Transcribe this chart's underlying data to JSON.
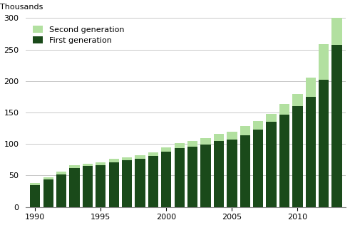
{
  "years": [
    1990,
    1991,
    1992,
    1993,
    1994,
    1995,
    1996,
    1997,
    1998,
    1999,
    2000,
    2001,
    2002,
    2003,
    2004,
    2005,
    2006,
    2007,
    2008,
    2009,
    2010,
    2011,
    2012,
    2013
  ],
  "first_generation": [
    35,
    44,
    52,
    62,
    65,
    66,
    71,
    74,
    76,
    81,
    88,
    93,
    96,
    99,
    105,
    107,
    114,
    123,
    135,
    147,
    160,
    175,
    202,
    257
  ],
  "second_generation": [
    3,
    3,
    4,
    4,
    4,
    5,
    5,
    5,
    6,
    6,
    7,
    8,
    9,
    10,
    11,
    12,
    14,
    13,
    13,
    17,
    19,
    30,
    57,
    43
  ],
  "first_gen_color": "#1a4a1a",
  "second_gen_color": "#b2e0a0",
  "thousands_label": "Thousands",
  "ylim": [
    0,
    300
  ],
  "yticks": [
    0,
    50,
    100,
    150,
    200,
    250,
    300
  ],
  "xticks": [
    1990,
    1995,
    2000,
    2005,
    2010
  ],
  "legend_labels": [
    "Second generation",
    "First generation"
  ],
  "grid_color": "#c8c8c8",
  "bar_width": 0.78
}
